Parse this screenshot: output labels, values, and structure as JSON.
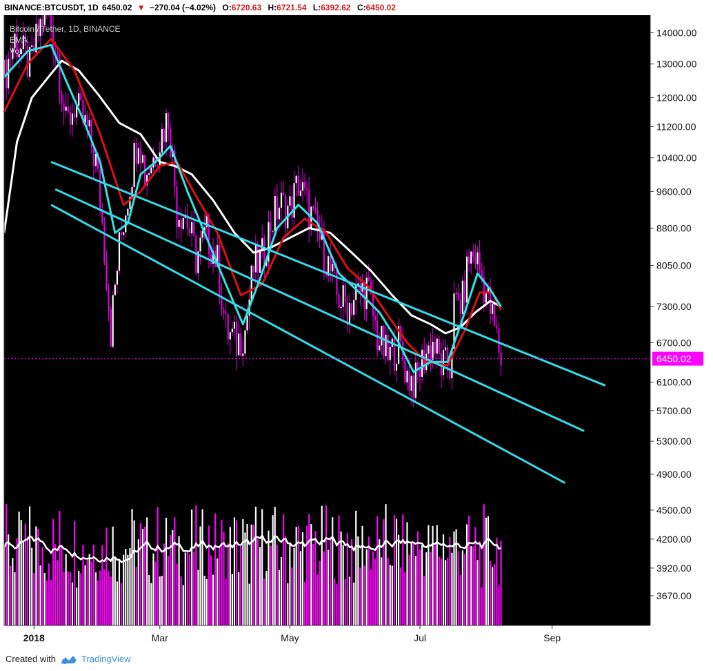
{
  "header": {
    "symbol": "BINANCE:BTCUSDT, 1D",
    "price": "6450.02",
    "arrow": "▼",
    "change": "−270.04 (−4.02%)",
    "open_label": "O:",
    "open": "6720.63",
    "high_label": "H:",
    "high": "6721.54",
    "low_label": "L:",
    "low": "6392.62",
    "close_label": "C:",
    "close": "6450.02"
  },
  "legend": {
    "series_title": "Bitcoin / Tether, 1D, BINANCE",
    "ema": "EMA",
    "vol": "Vol"
  },
  "footer": {
    "created_with": "Created with",
    "brand": "TradingView"
  },
  "colors": {
    "background": "#000000",
    "candles": "#e000e0",
    "ema_fast": "#2ee6e6",
    "ema_mid": "#e01010",
    "ema_slow": "#ffffff",
    "trendlines": "#33dbe8",
    "price_marker": "#ff00ff",
    "volume": "#ff00ff",
    "volume_alt": "#ffffff"
  },
  "chart_data": {
    "type": "candlestick",
    "title": "Bitcoin / Tether, 1D, BINANCE",
    "y_axis": {
      "scale": "log",
      "ticks": [
        14000,
        13000,
        12000,
        11200,
        10400,
        9600,
        8800,
        8050,
        7300,
        6700,
        6100,
        5700,
        5300,
        4900,
        4500,
        4200,
        3920,
        3670
      ],
      "tick_labels": [
        "14000.00",
        "13000.00",
        "12000.00",
        "11200.00",
        "10400.00",
        "9600.00",
        "8800.00",
        "8050.00",
        "7300.00",
        "6700.00",
        "6100.00",
        "5700.00",
        "5300.00",
        "4900.00",
        "4500.00",
        "4200.00",
        "3920.00",
        "3670.00"
      ],
      "range": [
        3420,
        14600
      ]
    },
    "x_axis": {
      "start": "2017-12-18",
      "end": "2018-10-17",
      "ticks": [
        {
          "date": "2018-01-01",
          "label": "2018",
          "bold": true
        },
        {
          "date": "2018-03-01",
          "label": "Mar",
          "bold": false
        },
        {
          "date": "2018-05-01",
          "label": "May",
          "bold": false
        },
        {
          "date": "2018-07-01",
          "label": "Jul",
          "bold": false
        },
        {
          "date": "2018-09-01",
          "label": "Sep",
          "bold": false
        }
      ]
    },
    "last_price": {
      "value": 6450.02,
      "label": "6450.02"
    },
    "price_path": [
      [
        "2017-12-18",
        12600
      ],
      [
        "2017-12-23",
        13800
      ],
      [
        "2017-12-30",
        12900
      ],
      [
        "2018-01-06",
        14800
      ],
      [
        "2018-01-09",
        14200
      ],
      [
        "2018-01-12",
        13300
      ],
      [
        "2018-01-16",
        11200
      ],
      [
        "2018-01-20",
        11800
      ],
      [
        "2018-01-26",
        11100
      ],
      [
        "2018-01-30",
        10300
      ],
      [
        "2018-02-02",
        8900
      ],
      [
        "2018-02-06",
        6900
      ],
      [
        "2018-02-10",
        8400
      ],
      [
        "2018-02-15",
        9800
      ],
      [
        "2018-02-19",
        11100
      ],
      [
        "2018-02-22",
        10000
      ],
      [
        "2018-02-26",
        10400
      ],
      [
        "2018-03-05",
        11500
      ],
      [
        "2018-03-09",
        9200
      ],
      [
        "2018-03-13",
        9100
      ],
      [
        "2018-03-18",
        8200
      ],
      [
        "2018-03-23",
        8700
      ],
      [
        "2018-03-28",
        8100
      ],
      [
        "2018-04-01",
        6900
      ],
      [
        "2018-04-06",
        6700
      ],
      [
        "2018-04-10",
        6900
      ],
      [
        "2018-04-14",
        8000
      ],
      [
        "2018-04-18",
        8200
      ],
      [
        "2018-04-22",
        8900
      ],
      [
        "2018-04-26",
        9300
      ],
      [
        "2018-05-01",
        9200
      ],
      [
        "2018-05-05",
        9800
      ],
      [
        "2018-05-09",
        9300
      ],
      [
        "2018-05-14",
        8700
      ],
      [
        "2018-05-18",
        8200
      ],
      [
        "2018-05-23",
        7500
      ],
      [
        "2018-05-28",
        7300
      ],
      [
        "2018-06-01",
        7500
      ],
      [
        "2018-06-06",
        7650
      ],
      [
        "2018-06-11",
        6800
      ],
      [
        "2018-06-16",
        6450
      ],
      [
        "2018-06-21",
        6700
      ],
      [
        "2018-06-25",
        6200
      ],
      [
        "2018-06-29",
        6100
      ],
      [
        "2018-07-03",
        6500
      ],
      [
        "2018-07-07",
        6700
      ],
      [
        "2018-07-11",
        6350
      ],
      [
        "2018-07-15",
        6300
      ],
      [
        "2018-07-17",
        7300
      ],
      [
        "2018-07-21",
        7400
      ],
      [
        "2018-07-24",
        8200
      ],
      [
        "2018-07-27",
        8250
      ],
      [
        "2018-07-31",
        7700
      ],
      [
        "2018-08-04",
        7100
      ],
      [
        "2018-08-08",
        6450
      ]
    ],
    "ema_fast": [
      [
        "2017-12-18",
        12600
      ],
      [
        "2017-12-29",
        13400
      ],
      [
        "2018-01-09",
        13600
      ],
      [
        "2018-01-16",
        12500
      ],
      [
        "2018-01-24",
        11400
      ],
      [
        "2018-02-01",
        10300
      ],
      [
        "2018-02-08",
        8700
      ],
      [
        "2018-02-14",
        8900
      ],
      [
        "2018-02-20",
        10000
      ],
      [
        "2018-02-27",
        10300
      ],
      [
        "2018-03-06",
        10700
      ],
      [
        "2018-03-14",
        9600
      ],
      [
        "2018-03-22",
        8700
      ],
      [
        "2018-04-01",
        7700
      ],
      [
        "2018-04-09",
        7000
      ],
      [
        "2018-04-17",
        7800
      ],
      [
        "2018-04-25",
        8800
      ],
      [
        "2018-05-05",
        9300
      ],
      [
        "2018-05-14",
        8900
      ],
      [
        "2018-05-24",
        7900
      ],
      [
        "2018-06-04",
        7500
      ],
      [
        "2018-06-12",
        7200
      ],
      [
        "2018-06-21",
        6700
      ],
      [
        "2018-06-28",
        6250
      ],
      [
        "2018-07-06",
        6400
      ],
      [
        "2018-07-14",
        6400
      ],
      [
        "2018-07-22",
        7200
      ],
      [
        "2018-07-28",
        7900
      ],
      [
        "2018-08-03",
        7600
      ],
      [
        "2018-08-08",
        7300
      ]
    ],
    "ema_mid": [
      [
        "2017-12-18",
        11600
      ],
      [
        "2017-12-29",
        13000
      ],
      [
        "2018-01-09",
        13800
      ],
      [
        "2018-01-20",
        12800
      ],
      [
        "2018-02-01",
        11000
      ],
      [
        "2018-02-12",
        9300
      ],
      [
        "2018-02-20",
        9600
      ],
      [
        "2018-03-01",
        10200
      ],
      [
        "2018-03-09",
        10300
      ],
      [
        "2018-03-18",
        9500
      ],
      [
        "2018-03-28",
        8700
      ],
      [
        "2018-04-08",
        7500
      ],
      [
        "2018-04-18",
        7700
      ],
      [
        "2018-04-28",
        8600
      ],
      [
        "2018-05-08",
        9000
      ],
      [
        "2018-05-18",
        8700
      ],
      [
        "2018-05-28",
        8000
      ],
      [
        "2018-06-07",
        7650
      ],
      [
        "2018-06-15",
        7200
      ],
      [
        "2018-06-25",
        6700
      ],
      [
        "2018-07-04",
        6400
      ],
      [
        "2018-07-14",
        6350
      ],
      [
        "2018-07-22",
        6900
      ],
      [
        "2018-07-29",
        7550
      ],
      [
        "2018-08-04",
        7550
      ],
      [
        "2018-08-08",
        7250
      ]
    ],
    "ema_slow": [
      [
        "2017-12-18",
        8700
      ],
      [
        "2017-12-24",
        10800
      ],
      [
        "2017-12-31",
        12000
      ],
      [
        "2018-01-09",
        12700
      ],
      [
        "2018-01-14",
        13100
      ],
      [
        "2018-01-22",
        12800
      ],
      [
        "2018-01-31",
        12100
      ],
      [
        "2018-02-10",
        11300
      ],
      [
        "2018-02-20",
        11000
      ],
      [
        "2018-03-01",
        10300
      ],
      [
        "2018-03-08",
        10200
      ],
      [
        "2018-03-16",
        10000
      ],
      [
        "2018-03-26",
        9400
      ],
      [
        "2018-04-05",
        8700
      ],
      [
        "2018-04-14",
        8300
      ],
      [
        "2018-04-22",
        8400
      ],
      [
        "2018-05-01",
        8600
      ],
      [
        "2018-05-10",
        8800
      ],
      [
        "2018-05-20",
        8700
      ],
      [
        "2018-05-30",
        8300
      ],
      [
        "2018-06-08",
        7950
      ],
      [
        "2018-06-18",
        7500
      ],
      [
        "2018-06-27",
        7150
      ],
      [
        "2018-07-06",
        7000
      ],
      [
        "2018-07-13",
        6850
      ],
      [
        "2018-07-20",
        6950
      ],
      [
        "2018-07-27",
        7200
      ],
      [
        "2018-08-03",
        7400
      ],
      [
        "2018-08-08",
        7300
      ]
    ],
    "trendlines": [
      {
        "from": [
          "2018-01-09",
          10300
        ],
        "to": [
          "2018-09-26",
          6050
        ]
      },
      {
        "from": [
          "2018-01-11",
          9650
        ],
        "to": [
          "2018-09-16",
          5430
        ]
      },
      {
        "from": [
          "2018-01-09",
          9300
        ],
        "to": [
          "2018-09-07",
          4800
        ]
      }
    ],
    "volume": {
      "ticks": [],
      "series": "volume bars with moving average"
    }
  }
}
